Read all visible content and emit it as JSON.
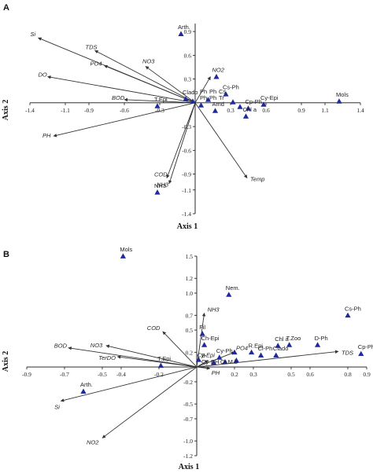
{
  "colors": {
    "point": "#1f2a9c",
    "vector": "#333333",
    "axis": "#111111"
  },
  "chart_data": [
    {
      "type": "scatter",
      "panel_label": "A",
      "xlabel": "Axis 1",
      "ylabel": "Axis 2",
      "xlim": [
        -1.4,
        1.4
      ],
      "ylim": [
        -1.4,
        1.0
      ],
      "x_ticks": [
        -1.4,
        -1.1,
        -0.9,
        -0.6,
        -0.3,
        0.3,
        0.6,
        0.9,
        1.1,
        1.4
      ],
      "x_tick_labels": [
        "-1.4",
        "-1.1",
        "-0.9",
        "-0.6",
        "-0.3",
        "0.3",
        "0.6",
        "0.9",
        "1.1",
        "1.4"
      ],
      "y_ticks": [
        0.9,
        0.6,
        0.3,
        -0.3,
        -0.6,
        -0.9,
        -1.1,
        -1.4
      ],
      "y_tick_labels": [
        "0.9",
        "0.6",
        "0.3",
        "-0.3",
        "-0.6",
        "-0.9",
        "-1.1",
        "-1.4"
      ],
      "vectors": [
        {
          "name": "Si",
          "x": -1.33,
          "y": 0.82
        },
        {
          "name": "TDS",
          "x": -0.85,
          "y": 0.66
        },
        {
          "name": "PO4",
          "x": -0.77,
          "y": 0.47
        },
        {
          "name": "NO3",
          "x": -0.42,
          "y": 0.46
        },
        {
          "name": "DO",
          "x": -1.25,
          "y": 0.33
        },
        {
          "name": "BOD",
          "x": -0.6,
          "y": 0.04
        },
        {
          "name": "PH",
          "x": -1.2,
          "y": -0.42
        },
        {
          "name": "COD",
          "x": -0.24,
          "y": -0.95
        },
        {
          "name": "NH3",
          "x": -0.22,
          "y": -1.02
        },
        {
          "name": "Temp",
          "x": 0.44,
          "y": -0.95
        },
        {
          "name": "NO2",
          "x": 0.13,
          "y": 0.33
        }
      ],
      "points": [
        {
          "label": "Arth.",
          "x": -0.12,
          "y": 0.87
        },
        {
          "label": "Mols",
          "x": 1.22,
          "y": 0.02
        },
        {
          "label": "T.Epi",
          "x": -0.32,
          "y": -0.04
        },
        {
          "label": "NH3",
          "x": -0.32,
          "y": -1.13
        },
        {
          "label": "Clado",
          "x": -0.08,
          "y": 0.05
        },
        {
          "label": "",
          "x": 0.18,
          "y": 0.33
        },
        {
          "label": "Cs-Ph",
          "x": 0.26,
          "y": 0.11
        },
        {
          "label": "Cy-Epi",
          "x": 0.58,
          "y": -0.02
        },
        {
          "label": "Cp-Ph",
          "x": 0.45,
          "y": -0.07
        },
        {
          "label": "Chl a",
          "x": 0.43,
          "y": -0.17
        },
        {
          "label": "Amd",
          "x": 0.17,
          "y": -0.1
        },
        {
          "label": "",
          "x": -0.02,
          "y": 0.02
        },
        {
          "label": "",
          "x": 0.05,
          "y": -0.03
        },
        {
          "label": "",
          "x": 0.11,
          "y": 0.04
        },
        {
          "label": "",
          "x": 0.32,
          "y": 0.01
        },
        {
          "label": "",
          "x": 0.38,
          "y": -0.05
        }
      ],
      "crowded_labels": [
        "Ph",
        "Ph",
        "Tr",
        "Ph",
        "Ph",
        "Cs"
      ]
    },
    {
      "type": "scatter",
      "panel_label": "B",
      "xlabel": "Axis 1",
      "ylabel": "Axis 2",
      "xlim": [
        -0.9,
        0.9
      ],
      "ylim": [
        -1.2,
        1.5
      ],
      "x_ticks": [
        -0.9,
        -0.7,
        -0.5,
        -0.4,
        -0.2,
        0.2,
        0.3,
        0.5,
        0.6,
        0.8,
        0.9
      ],
      "x_tick_labels": [
        "-0.9",
        "-0.7",
        "-0.5",
        "-0.4",
        "-0.2",
        "0.2",
        "0.3",
        "0.5",
        "0.6",
        "0.8",
        "0.9"
      ],
      "y_ticks": [
        1.5,
        1.2,
        1.0,
        0.7,
        0.5,
        0.2,
        -0.2,
        -0.5,
        -0.7,
        -1.0,
        -1.2
      ],
      "y_tick_labels": [
        "1.5",
        "1.2",
        "1.0",
        "0.7",
        "0.5",
        "0.2",
        "-0.2",
        "-0.5",
        "-0.7",
        "-1.0",
        "-1.2"
      ],
      "vectors": [
        {
          "name": "BOD",
          "x": -0.68,
          "y": 0.26
        },
        {
          "name": "NO3",
          "x": -0.48,
          "y": 0.29
        },
        {
          "name": "COD",
          "x": -0.18,
          "y": 0.48
        },
        {
          "name": "NH3",
          "x": 0.04,
          "y": 0.73
        },
        {
          "name": "TerDO",
          "x": -0.42,
          "y": 0.14
        },
        {
          "name": "TDS",
          "x": 0.75,
          "y": 0.21
        },
        {
          "name": "Si",
          "x": -0.72,
          "y": -0.46
        },
        {
          "name": "NO2",
          "x": -0.5,
          "y": -0.96
        },
        {
          "name": "PH",
          "x": 0.07,
          "y": -0.02
        },
        {
          "name": "PO4",
          "x": 0.2,
          "y": 0.2
        },
        {
          "name": "Cy-Epi",
          "x": 0.06,
          "y": 0.09
        }
      ],
      "points": [
        {
          "label": "Mols",
          "x": -0.39,
          "y": 1.5
        },
        {
          "label": "Nem.",
          "x": 0.17,
          "y": 0.98
        },
        {
          "label": "Cs-Ph",
          "x": 0.8,
          "y": 0.7
        },
        {
          "label": "D-Ph",
          "x": 0.64,
          "y": 0.3
        },
        {
          "label": "Cp-Ph",
          "x": 0.87,
          "y": 0.18
        },
        {
          "label": "T.Zoo",
          "x": 0.49,
          "y": 0.3
        },
        {
          "label": "Chl a",
          "x": 0.43,
          "y": 0.29
        },
        {
          "label": "T.Epi",
          "x": -0.19,
          "y": 0.02
        },
        {
          "label": "Arth.",
          "x": -0.6,
          "y": -0.33
        },
        {
          "label": "R.Epi",
          "x": 0.29,
          "y": 0.2
        },
        {
          "label": "Cl-Ph",
          "x": 0.34,
          "y": 0.16
        },
        {
          "label": "Clado",
          "x": 0.42,
          "y": 0.16
        },
        {
          "label": "Cy-Ph",
          "x": 0.12,
          "y": 0.13
        },
        {
          "label": "Ch-Epi",
          "x": 0.04,
          "y": 0.3
        },
        {
          "label": "Fil",
          "x": 0.03,
          "y": 0.45
        },
        {
          "label": "",
          "x": 0.09,
          "y": 0.06
        },
        {
          "label": "",
          "x": 0.2,
          "y": 0.2
        },
        {
          "label": "",
          "x": 0.01,
          "y": 0.1
        },
        {
          "label": "",
          "x": 0.15,
          "y": 0.07
        },
        {
          "label": "",
          "x": 0.21,
          "y": 0.09
        }
      ],
      "crowded_labels": [
        "Cy",
        "PH",
        "Cr.M.b",
        "B"
      ]
    }
  ]
}
